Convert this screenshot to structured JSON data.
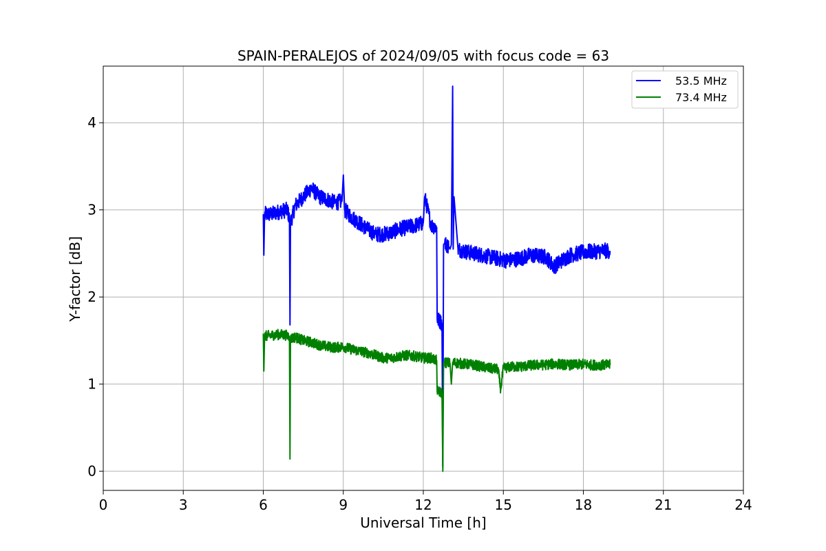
{
  "chart_data": {
    "type": "line",
    "title": "SPAIN-PERALEJOS of 2024/09/05 with focus code = 63",
    "xlabel": "Universal Time [h]",
    "ylabel": "Y-factor [dB]",
    "xlim": [
      0,
      24
    ],
    "ylim": [
      -0.22,
      4.65
    ],
    "xticks": [
      0,
      3,
      6,
      9,
      12,
      15,
      18,
      21,
      24
    ],
    "yticks": [
      0,
      1,
      2,
      3,
      4
    ],
    "grid": true,
    "legend_position": "top-right",
    "series": [
      {
        "name": "53.5 MHz",
        "color": "#0000ff",
        "x": [
          6.0,
          6.02,
          6.05,
          6.3,
          6.6,
          6.9,
          6.98,
          7.0,
          7.02,
          7.2,
          7.5,
          7.8,
          8.1,
          8.4,
          8.7,
          8.95,
          9.0,
          9.05,
          9.3,
          9.6,
          9.9,
          10.2,
          10.5,
          10.8,
          11.1,
          11.4,
          11.7,
          12.0,
          12.05,
          12.3,
          12.5,
          12.52,
          12.7,
          12.73,
          12.76,
          12.8,
          12.95,
          13.0,
          13.05,
          13.1,
          13.12,
          13.15,
          13.3,
          13.6,
          13.9,
          14.2,
          14.5,
          14.8,
          15.1,
          15.4,
          15.7,
          16.0,
          16.3,
          16.6,
          16.9,
          17.2,
          17.5,
          17.8,
          18.1,
          18.4,
          18.7,
          19.0
        ],
        "y": [
          2.95,
          2.48,
          2.95,
          2.95,
          2.98,
          3.0,
          2.9,
          1.68,
          2.85,
          3.05,
          3.15,
          3.25,
          3.15,
          3.12,
          3.08,
          3.1,
          3.4,
          3.0,
          2.92,
          2.85,
          2.78,
          2.72,
          2.72,
          2.74,
          2.78,
          2.8,
          2.82,
          2.85,
          3.15,
          2.82,
          2.8,
          1.75,
          1.7,
          0.05,
          2.6,
          2.62,
          2.58,
          2.55,
          2.6,
          4.42,
          2.55,
          3.15,
          2.55,
          2.52,
          2.5,
          2.48,
          2.46,
          2.44,
          2.42,
          2.43,
          2.45,
          2.48,
          2.47,
          2.46,
          2.35,
          2.42,
          2.48,
          2.5,
          2.52,
          2.52,
          2.53,
          2.53
        ]
      },
      {
        "name": "73.4 MHz",
        "color": "#008000",
        "x": [
          6.0,
          6.02,
          6.05,
          6.3,
          6.6,
          6.9,
          6.98,
          7.0,
          7.02,
          7.2,
          7.5,
          7.8,
          8.1,
          8.4,
          8.7,
          9.0,
          9.3,
          9.6,
          9.9,
          10.2,
          10.5,
          10.8,
          11.1,
          11.4,
          11.7,
          12.0,
          12.3,
          12.5,
          12.52,
          12.7,
          12.73,
          12.76,
          12.8,
          13.0,
          13.05,
          13.1,
          13.3,
          13.6,
          13.9,
          14.2,
          14.5,
          14.8,
          14.9,
          15.0,
          15.3,
          15.6,
          15.9,
          16.2,
          16.5,
          16.8,
          17.1,
          17.4,
          17.7,
          18.0,
          18.3,
          18.6,
          19.0
        ],
        "y": [
          1.58,
          1.15,
          1.55,
          1.56,
          1.57,
          1.56,
          1.55,
          0.14,
          1.52,
          1.54,
          1.5,
          1.48,
          1.45,
          1.43,
          1.42,
          1.43,
          1.4,
          1.38,
          1.36,
          1.33,
          1.3,
          1.3,
          1.32,
          1.33,
          1.32,
          1.3,
          1.3,
          1.27,
          0.92,
          0.9,
          0.0,
          1.25,
          1.25,
          1.24,
          1.0,
          1.25,
          1.24,
          1.23,
          1.22,
          1.2,
          1.18,
          1.17,
          0.94,
          1.18,
          1.2,
          1.2,
          1.21,
          1.22,
          1.22,
          1.23,
          1.23,
          1.22,
          1.22,
          1.23,
          1.22,
          1.22,
          1.22
        ]
      }
    ]
  }
}
